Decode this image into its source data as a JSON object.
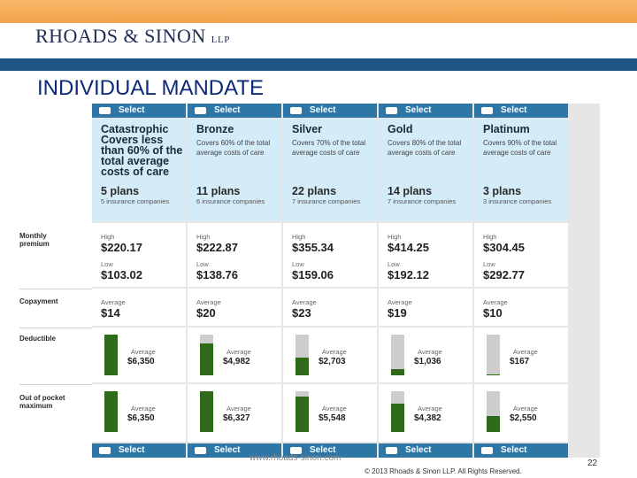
{
  "brand": {
    "name": "RHOADS & SINON",
    "suffix": "LLP"
  },
  "slide": {
    "title": "INDIVIDUAL MANDATE",
    "url": "www.rhoads-sinon.com",
    "copyright": "© 2013 Rhoads & Sinon LLP. All Rights Reserved.",
    "page_number": "22"
  },
  "row_labels": {
    "monthly_premium": "Monthly premium",
    "copayment": "Copayment",
    "deductible": "Deductible",
    "out_of_pocket": "Out of pocket maximum"
  },
  "common": {
    "select": "Select",
    "high": "High",
    "low": "Low",
    "average": "Average"
  },
  "colors": {
    "select_bar": "#2e76a5",
    "header_bg": "#d4ebf8",
    "bar_fill": "#2e6a1a",
    "title": "#0d2a78"
  },
  "plans": [
    {
      "name": "Catastrophic Covers less than 60% of the total average costs of care",
      "description": "",
      "plans": "5 plans",
      "insurers": "5 insurance companies",
      "premium_high": "$220.17",
      "premium_low": "$103.02",
      "copay": "$14",
      "deductible": "$6,350",
      "deductible_level": 1.0,
      "oop": "$6,350",
      "oop_level": 1.0
    },
    {
      "name": "Bronze",
      "description": "Covers 60% of the total average costs of care",
      "plans": "11 plans",
      "insurers": "6 insurance companies",
      "premium_high": "$222.87",
      "premium_low": "$138.76",
      "copay": "$20",
      "deductible": "$4,982",
      "deductible_level": 0.78,
      "oop": "$6,327",
      "oop_level": 1.0
    },
    {
      "name": "Silver",
      "description": "Covers 70% of the total average costs of care",
      "plans": "22 plans",
      "insurers": "7 insurance companies",
      "premium_high": "$355.34",
      "premium_low": "$159.06",
      "copay": "$23",
      "deductible": "$2,703",
      "deductible_level": 0.43,
      "oop": "$5,548",
      "oop_level": 0.87
    },
    {
      "name": "Gold",
      "description": "Covers 80% of the total average costs of care",
      "plans": "14 plans",
      "insurers": "7 insurance companies",
      "premium_high": "$414.25",
      "premium_low": "$192.12",
      "copay": "$19",
      "deductible": "$1,036",
      "deductible_level": 0.16,
      "oop": "$4,382",
      "oop_level": 0.69
    },
    {
      "name": "Platinum",
      "description": "Covers 90% of the total average costs of care",
      "plans": "3 plans",
      "insurers": "3 insurance companies",
      "premium_high": "$304.45",
      "premium_low": "$292.77",
      "copay": "$10",
      "deductible": "$167",
      "deductible_level": 0.03,
      "oop": "$2,550",
      "oop_level": 0.4
    }
  ]
}
